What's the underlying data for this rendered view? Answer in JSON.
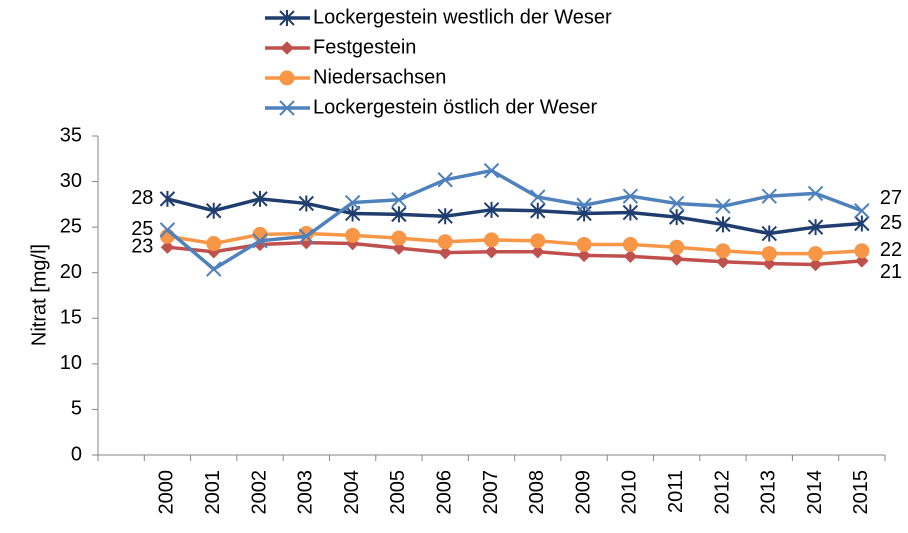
{
  "chart_data": {
    "type": "line",
    "y_label": "Nitrat [mg/l]",
    "categories": [
      null,
      "2000",
      "2001",
      "2002",
      "2003",
      "2004",
      "2005",
      "2006",
      "2007",
      "2008",
      "2009",
      "2010",
      "2011",
      "2012",
      "2013",
      "2014",
      "2015"
    ],
    "ylim": [
      0,
      35
    ],
    "yticks": [
      0,
      5,
      10,
      15,
      20,
      25,
      30,
      35
    ],
    "legend": "top",
    "series": [
      {
        "name": "Lockergestein westlich der Weser",
        "color": "#1f3d6e",
        "marker": "star",
        "values": [
          null,
          28.1,
          26.8,
          28.1,
          27.6,
          26.5,
          26.4,
          26.2,
          26.9,
          26.8,
          26.5,
          26.6,
          26.1,
          25.3,
          24.3,
          25.0,
          25.4
        ],
        "value_labels": [
          null,
          "28",
          null,
          null,
          null,
          null,
          null,
          null,
          null,
          null,
          null,
          null,
          null,
          null,
          null,
          null,
          "25"
        ]
      },
      {
        "name": "Festgestein",
        "color": "#c0504d",
        "marker": "diamond",
        "values": [
          null,
          22.8,
          22.3,
          23.1,
          23.3,
          23.2,
          22.7,
          22.2,
          22.3,
          22.3,
          21.9,
          21.8,
          21.5,
          21.2,
          21.0,
          20.9,
          21.3
        ],
        "value_labels": [
          null,
          "23",
          null,
          null,
          null,
          null,
          null,
          null,
          null,
          null,
          null,
          null,
          null,
          null,
          null,
          null,
          "21"
        ]
      },
      {
        "name": "Niedersachsen",
        "color": "#f79646",
        "marker": "circle",
        "values": [
          null,
          24.0,
          23.2,
          24.2,
          24.3,
          24.1,
          23.8,
          23.4,
          23.6,
          23.5,
          23.1,
          23.1,
          22.8,
          22.4,
          22.1,
          22.1,
          22.4
        ],
        "value_labels": [
          null,
          null,
          null,
          null,
          null,
          null,
          null,
          null,
          null,
          null,
          null,
          null,
          null,
          null,
          null,
          null,
          "22"
        ]
      },
      {
        "name": "Lockergestein östlich der Weser",
        "color": "#4f81bd",
        "marker": "x",
        "values": [
          null,
          24.7,
          20.4,
          23.5,
          24.0,
          27.7,
          28.0,
          30.2,
          31.2,
          28.3,
          27.4,
          28.4,
          27.6,
          27.3,
          28.4,
          28.7,
          26.8
        ],
        "value_labels": [
          null,
          "25",
          null,
          null,
          null,
          null,
          null,
          null,
          null,
          null,
          null,
          null,
          null,
          null,
          null,
          null,
          "27"
        ]
      }
    ]
  }
}
